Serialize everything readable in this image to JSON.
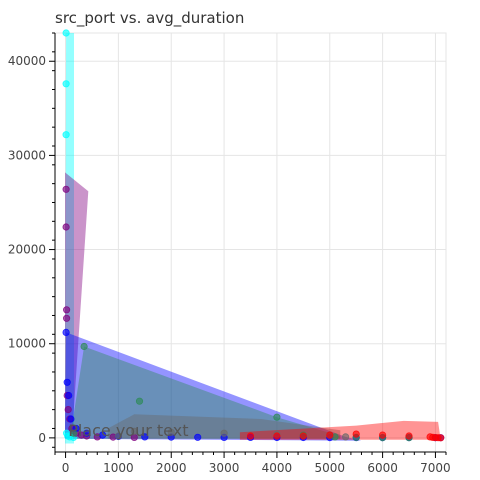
{
  "chart_data": {
    "type": "scatter",
    "title": "src_port vs. avg_duration",
    "xlabel": "",
    "ylabel": "",
    "xlim": [
      -200,
      7200
    ],
    "ylim": [
      -1500,
      43000
    ],
    "x_ticks": [
      0,
      1000,
      2000,
      3000,
      4000,
      5000,
      6000,
      7000
    ],
    "y_ticks": [
      0,
      10000,
      20000,
      30000,
      40000
    ],
    "grid": true,
    "legend": "none",
    "annotation": {
      "text": "Place your text",
      "x": 50,
      "y": 200
    },
    "series": [
      {
        "color": "#00ffff",
        "points": [
          [
            10,
            43000
          ],
          [
            10,
            37600
          ],
          [
            10,
            32200
          ],
          [
            20,
            500
          ],
          [
            40,
            200
          ],
          [
            80,
            100
          ],
          [
            150,
            50
          ]
        ],
        "hull": [
          [
            10,
            43000
          ],
          [
            160,
            43000
          ],
          [
            160,
            -600
          ],
          [
            -10,
            -600
          ]
        ]
      },
      {
        "color": "#800080",
        "points": [
          [
            10,
            26400
          ],
          [
            10,
            22400
          ],
          [
            20,
            13600
          ],
          [
            20,
            12700
          ],
          [
            30,
            4500
          ],
          [
            50,
            3000
          ],
          [
            80,
            2000
          ],
          [
            120,
            1000
          ],
          [
            200,
            500
          ],
          [
            300,
            300
          ],
          [
            400,
            200
          ],
          [
            600,
            100
          ],
          [
            900,
            80
          ],
          [
            1300,
            50
          ]
        ],
        "hull": [
          [
            -10,
            28200
          ],
          [
            430,
            26200
          ],
          [
            250,
            11000
          ],
          [
            120,
            -100
          ],
          [
            -10,
            0
          ]
        ]
      },
      {
        "color": "#0000ff",
        "points": [
          [
            10,
            11200
          ],
          [
            30,
            5900
          ],
          [
            60,
            4500
          ],
          [
            100,
            2000
          ],
          [
            200,
            1000
          ],
          [
            400,
            500
          ],
          [
            700,
            300
          ],
          [
            1000,
            150
          ],
          [
            1500,
            100
          ],
          [
            2000,
            80
          ],
          [
            2500,
            60
          ],
          [
            3000,
            50
          ],
          [
            3500,
            50
          ],
          [
            4000,
            40
          ],
          [
            4500,
            40
          ],
          [
            5000,
            30
          ],
          [
            5500,
            30
          ],
          [
            6000,
            30
          ],
          [
            6500,
            30
          ],
          [
            7000,
            20
          ],
          [
            7100,
            20
          ]
        ],
        "hull": [
          [
            10,
            11200
          ],
          [
            5300,
            100
          ],
          [
            5600,
            -300
          ],
          [
            -10,
            -100
          ]
        ]
      },
      {
        "color": "#2e8b57",
        "points": [
          [
            150,
            500
          ],
          [
            350,
            9700
          ],
          [
            1400,
            3900
          ],
          [
            4000,
            2200
          ],
          [
            4500,
            300
          ],
          [
            5100,
            100
          ],
          [
            5500,
            50
          ],
          [
            6000,
            30
          ],
          [
            6500,
            20
          ]
        ],
        "hull": [
          [
            350,
            9700
          ],
          [
            4000,
            2200
          ],
          [
            5200,
            200
          ],
          [
            5200,
            -100
          ],
          [
            150,
            -100
          ],
          [
            100,
            500
          ]
        ]
      },
      {
        "color": "#696969",
        "points": [
          [
            1000,
            200
          ],
          [
            1300,
            700
          ],
          [
            2000,
            600
          ],
          [
            3000,
            500
          ],
          [
            4000,
            400
          ],
          [
            5000,
            300
          ],
          [
            5300,
            100
          ]
        ],
        "hull": [
          [
            800,
            1000
          ],
          [
            1300,
            2500
          ],
          [
            3700,
            2000
          ],
          [
            5200,
            800
          ],
          [
            5200,
            -100
          ],
          [
            800,
            -100
          ]
        ]
      },
      {
        "color": "#ff0000",
        "points": [
          [
            3500,
            200
          ],
          [
            4000,
            200
          ],
          [
            4500,
            200
          ],
          [
            5000,
            300
          ],
          [
            5500,
            400
          ],
          [
            6000,
            300
          ],
          [
            6500,
            200
          ],
          [
            6900,
            100
          ],
          [
            6950,
            50
          ],
          [
            7000,
            30
          ],
          [
            7050,
            20
          ],
          [
            7100,
            10
          ]
        ],
        "hull": [
          [
            3300,
            600
          ],
          [
            5500,
            1300
          ],
          [
            6400,
            1800
          ],
          [
            7050,
            1700
          ],
          [
            7100,
            -200
          ],
          [
            3300,
            -200
          ]
        ]
      }
    ]
  }
}
